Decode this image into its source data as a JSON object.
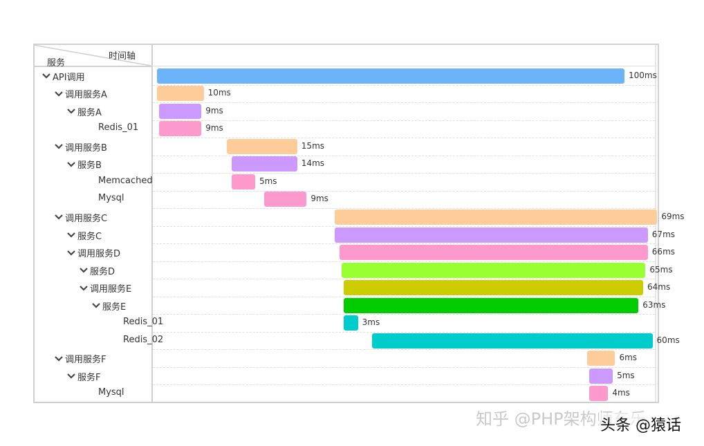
{
  "header": {
    "service_label": "服务",
    "timeline_label": "时间轴"
  },
  "colors": {
    "blue": "#6cb4fa",
    "orange": "#fecc99",
    "purple": "#cc99fe",
    "pink": "#fd99cc",
    "lime": "#99ff33",
    "olive": "#cccc00",
    "green": "#00cc00",
    "cyan": "#00cccc"
  },
  "rows": [
    {
      "label": "API调用",
      "indent": 0,
      "expanded": true,
      "bar_start_ms": 0,
      "duration_ms": 100,
      "duration_label": "100ms",
      "color": "#6cb4fa"
    },
    {
      "label": "调用服务A",
      "indent": 1,
      "expanded": true,
      "bar_start_ms": 0,
      "duration_ms": 10,
      "duration_label": "10ms",
      "color": "#fecc99"
    },
    {
      "label": "服务A",
      "indent": 2,
      "expanded": true,
      "bar_start_ms": 0.5,
      "duration_ms": 9,
      "duration_label": "9ms",
      "color": "#cc99fe"
    },
    {
      "label": "Redis_01",
      "indent": 3,
      "expanded": false,
      "bar_start_ms": 0.5,
      "duration_ms": 9,
      "duration_label": "9ms",
      "color": "#fd99cc"
    },
    {
      "label": "调用服务B",
      "indent": 1,
      "expanded": true,
      "bar_start_ms": 15,
      "duration_ms": 15,
      "duration_label": "15ms",
      "color": "#fecc99"
    },
    {
      "label": "服务B",
      "indent": 2,
      "expanded": true,
      "bar_start_ms": 16,
      "duration_ms": 14,
      "duration_label": "14ms",
      "color": "#cc99fe"
    },
    {
      "label": "Memcached",
      "indent": 3,
      "expanded": false,
      "bar_start_ms": 16,
      "duration_ms": 5,
      "duration_label": "5ms",
      "color": "#fd99cc"
    },
    {
      "label": "Mysql",
      "indent": 3,
      "expanded": false,
      "bar_start_ms": 23,
      "duration_ms": 9,
      "duration_label": "9ms",
      "color": "#fd99cc"
    },
    {
      "label": "调用服务C",
      "indent": 1,
      "expanded": true,
      "bar_start_ms": 38,
      "duration_ms": 69,
      "duration_label": "69ms",
      "color": "#fecc99"
    },
    {
      "label": "服务C",
      "indent": 2,
      "expanded": true,
      "bar_start_ms": 38,
      "duration_ms": 67,
      "duration_label": "67ms",
      "color": "#cc99fe"
    },
    {
      "label": "调用服务D",
      "indent": 2,
      "expanded": true,
      "bar_start_ms": 39,
      "duration_ms": 66,
      "duration_label": "66ms",
      "color": "#fd99cc"
    },
    {
      "label": "服务D",
      "indent": 3,
      "expanded": true,
      "bar_start_ms": 39.5,
      "duration_ms": 65,
      "duration_label": "65ms",
      "color": "#99ff33"
    },
    {
      "label": "调用服务E",
      "indent": 3,
      "expanded": true,
      "bar_start_ms": 40,
      "duration_ms": 64,
      "duration_label": "64ms",
      "color": "#cccc00"
    },
    {
      "label": "服务E",
      "indent": 4,
      "expanded": true,
      "bar_start_ms": 40,
      "duration_ms": 63,
      "duration_label": "63ms",
      "color": "#00cc00"
    },
    {
      "label": "Redis_01",
      "indent": 5,
      "expanded": false,
      "bar_start_ms": 40,
      "duration_ms": 3,
      "duration_label": "3ms",
      "color": "#00cccc"
    },
    {
      "label": "Redis_02",
      "indent": 5,
      "expanded": false,
      "bar_start_ms": 46,
      "duration_ms": 60,
      "duration_label": "60ms",
      "color": "#00cccc"
    },
    {
      "label": "调用服务F",
      "indent": 1,
      "expanded": true,
      "bar_start_ms": 92,
      "duration_ms": 6,
      "duration_label": "6ms",
      "color": "#fecc99"
    },
    {
      "label": "服务F",
      "indent": 2,
      "expanded": true,
      "bar_start_ms": 92.5,
      "duration_ms": 5,
      "duration_label": "5ms",
      "color": "#cc99fe"
    },
    {
      "label": "Mysql",
      "indent": 3,
      "expanded": false,
      "bar_start_ms": 92.5,
      "duration_ms": 4,
      "duration_label": "4ms",
      "color": "#fd99cc"
    }
  ],
  "watermarks": {
    "zhihu": "知乎 @PHP架构师东乐",
    "toutiao": "头条 @猿话"
  }
}
